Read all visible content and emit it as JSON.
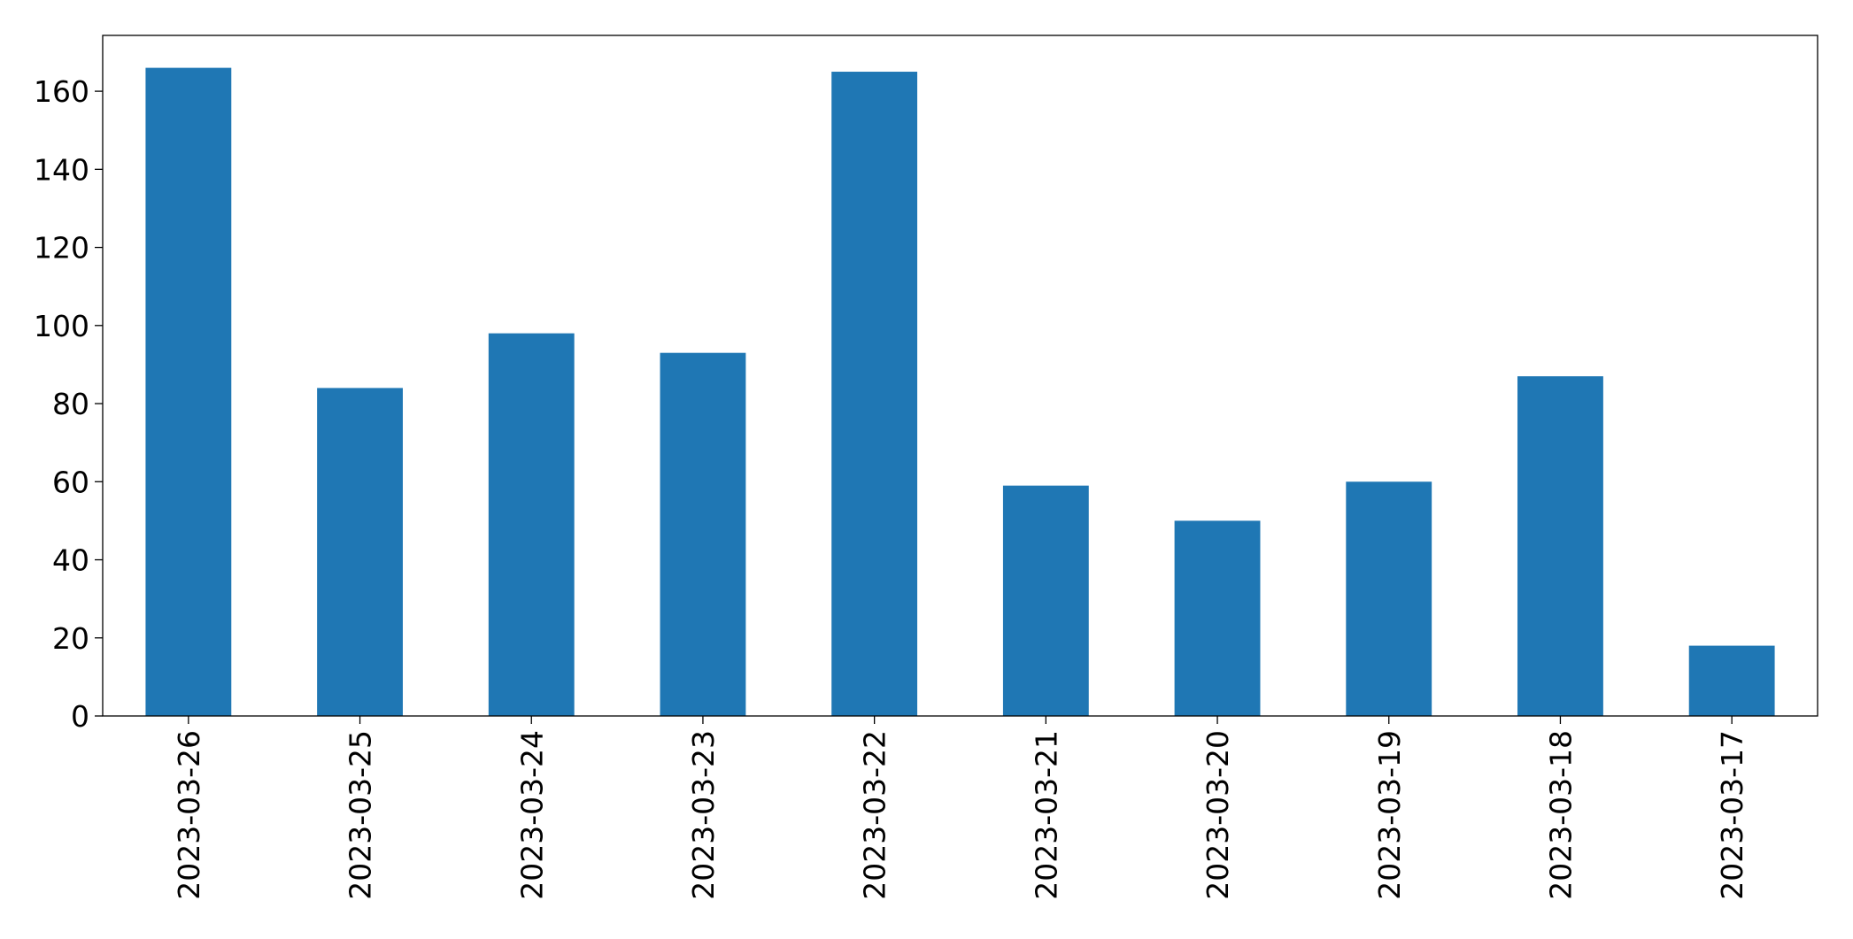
{
  "chart_data": {
    "type": "bar",
    "categories": [
      "2023-03-26",
      "2023-03-25",
      "2023-03-24",
      "2023-03-23",
      "2023-03-22",
      "2023-03-21",
      "2023-03-20",
      "2023-03-19",
      "2023-03-18",
      "2023-03-17"
    ],
    "values": [
      166,
      84,
      98,
      93,
      165,
      59,
      50,
      60,
      87,
      18
    ],
    "color": "#1f77b4",
    "ylim": [
      0,
      174.3
    ],
    "yticks": [
      0,
      20,
      40,
      60,
      80,
      100,
      120,
      140,
      160
    ],
    "grid": false
  }
}
